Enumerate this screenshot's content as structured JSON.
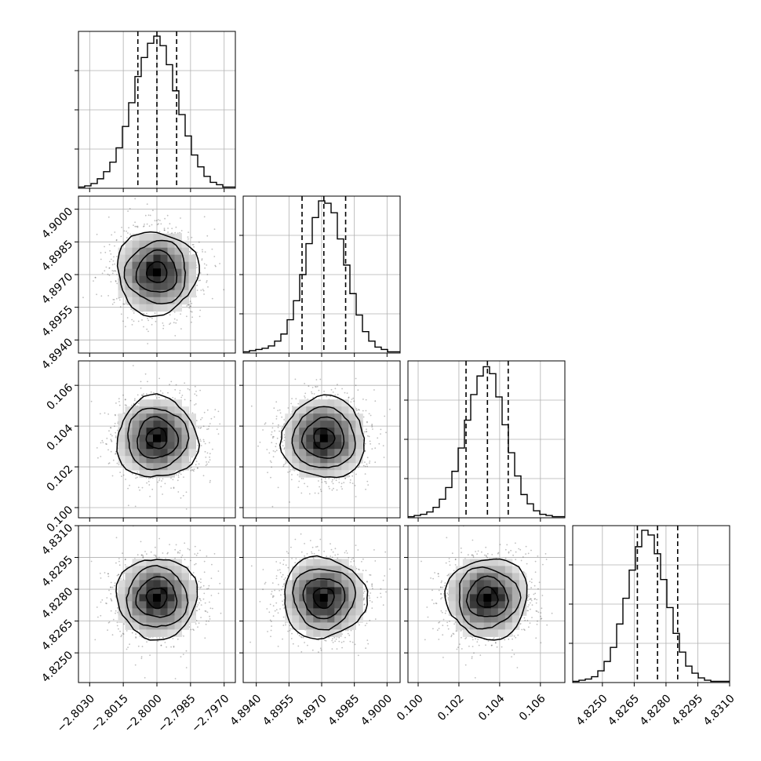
{
  "chart_data": {
    "type": "corner",
    "parameters": [
      {
        "range": [
          -2.8035,
          -2.7965
        ],
        "ticks": [
          -2.803,
          -2.8015,
          -2.8,
          -2.7985,
          -2.797
        ],
        "tick_labels": [
          "−2.8030",
          "−2.8015",
          "−2.8000",
          "−2.7985",
          "−2.7970"
        ],
        "center": -2.8,
        "sigma": 0.0009,
        "quantiles": [
          -2.80085,
          -2.8,
          -2.79912
        ]
      },
      {
        "range": [
          4.8934,
          4.9006
        ],
        "ticks": [
          4.894,
          4.8955,
          4.897,
          4.8985,
          4.9
        ],
        "tick_labels": [
          "4.8940",
          "4.8955",
          "4.8970",
          "4.8985",
          "4.9000"
        ],
        "center": 4.8971,
        "sigma": 0.00095,
        "quantiles": [
          4.8961,
          4.8971,
          4.8981
        ]
      },
      {
        "range": [
          0.0995,
          0.1072
        ],
        "ticks": [
          0.1,
          0.102,
          0.104,
          0.106
        ],
        "tick_labels": [
          "0.100",
          "0.102",
          "0.104",
          "0.106"
        ],
        "center": 0.1034,
        "sigma": 0.001,
        "quantiles": [
          0.10235,
          0.1034,
          0.10442
        ]
      },
      {
        "range": [
          4.8236,
          4.831
        ],
        "ticks": [
          4.825,
          4.8265,
          4.828,
          4.8295,
          4.831
        ],
        "tick_labels": [
          "4.8250",
          "4.8265",
          "4.8280",
          "4.8295",
          "4.8310"
        ],
        "center": 4.8276,
        "sigma": 0.00095,
        "quantiles": [
          4.82665,
          4.8276,
          4.82855
        ]
      }
    ],
    "histograms": [
      {
        "bins": [
          -2.8035,
          -2.7965
        ],
        "counts": [
          1,
          2,
          4,
          8,
          14,
          22,
          34,
          52,
          72,
          94,
          110,
          122,
          128,
          120,
          104,
          82,
          62,
          44,
          28,
          18,
          10,
          5,
          3,
          1,
          1
        ],
        "ylim": [
          0,
          132
        ]
      },
      {
        "bins": [
          4.8934,
          4.9006
        ],
        "counts": [
          1,
          2,
          3,
          4,
          6,
          10,
          16,
          28,
          44,
          66,
          92,
          114,
          128,
          126,
          118,
          96,
          74,
          50,
          32,
          18,
          10,
          5,
          3,
          1,
          1
        ],
        "ylim": [
          0,
          132
        ]
      },
      {
        "bins": [
          0.0995,
          0.1072
        ],
        "counts": [
          1,
          2,
          3,
          5,
          9,
          16,
          26,
          40,
          60,
          84,
          106,
          122,
          130,
          124,
          104,
          80,
          56,
          36,
          20,
          12,
          6,
          3,
          2,
          1,
          1
        ],
        "ylim": [
          0,
          135
        ]
      },
      {
        "bins": [
          4.8236,
          4.831
        ],
        "counts": [
          1,
          2,
          3,
          5,
          10,
          18,
          30,
          50,
          72,
          96,
          116,
          130,
          126,
          110,
          88,
          64,
          42,
          26,
          14,
          8,
          4,
          2,
          1,
          1,
          1
        ],
        "ylim": [
          0,
          134
        ]
      }
    ],
    "density": {
      "levels_sigma": [
        0.5,
        1.0,
        1.5,
        2.0
      ],
      "samples_per_panel": 1400
    },
    "grid": true,
    "colors": {
      "line": "#000000",
      "grid": "#b0b0b0",
      "point": "#000000"
    }
  }
}
